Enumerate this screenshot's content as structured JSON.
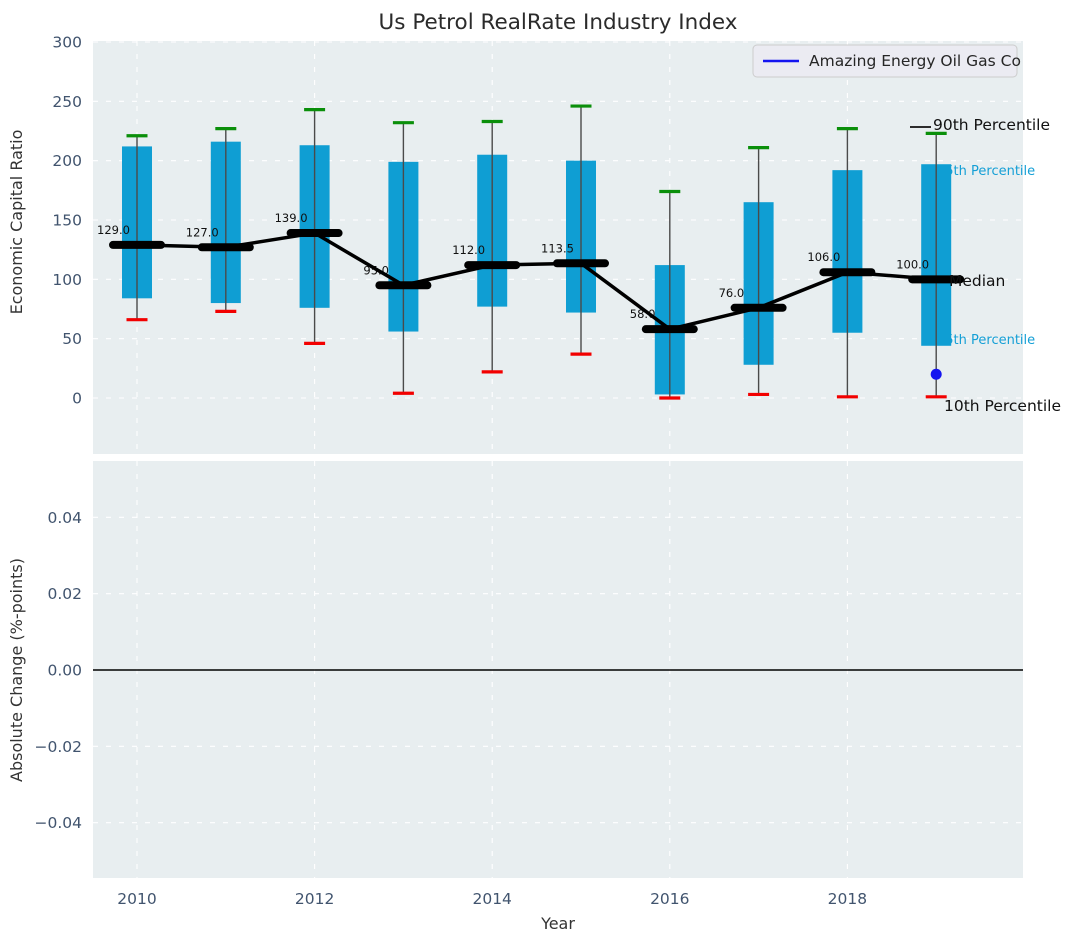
{
  "title": "Us Petrol RealRate Industry Index",
  "colors": {
    "figure_bg": "#ffffff",
    "panel_bg": "#e8eef0",
    "grid": "#ffffff",
    "box_fill": "#0f9ed3",
    "whisker": "#4a4a4a",
    "cap_90th": "#0a8f0a",
    "cap_10th": "#f20000",
    "median": "#000000",
    "company": "#1414f0",
    "tick_label": "#41546e",
    "axis_label": "#333333",
    "title": "#2b2b2b",
    "annotation_dark": "#111111",
    "annotation_teal": "#149fd6",
    "legend_bg": "#ebebf2",
    "legend_border": "#cccccc",
    "legend_text": "#262626",
    "zero_line": "#000000"
  },
  "annotations": {
    "p90": "90th Percentile",
    "p75": "75th Percentile",
    "median": "Median",
    "p25": "25th Percentile",
    "p10": "10th Percentile"
  },
  "chart_data": [
    {
      "type": "boxplot",
      "title": "Us Petrol RealRate Industry Index",
      "ylabel": "Economic Capital Ratio",
      "ylim": [
        -47,
        301
      ],
      "grid": true,
      "legend": {
        "label": "Amazing Energy Oil Gas Co",
        "position": "upper right"
      },
      "x": [
        2010,
        2011,
        2012,
        2013,
        2014,
        2015,
        2016,
        2017,
        2018,
        2019
      ],
      "series": [
        {
          "name": "90th Percentile",
          "values": [
            221,
            227,
            243,
            232,
            233,
            246,
            174,
            211,
            227,
            223
          ]
        },
        {
          "name": "75th Percentile",
          "values": [
            212,
            216,
            213,
            199,
            205,
            200,
            112,
            165,
            192,
            197
          ]
        },
        {
          "name": "Median",
          "values": [
            129.0,
            127.0,
            139.0,
            95.0,
            112.0,
            113.5,
            58.0,
            76.0,
            106.0,
            100.0
          ]
        },
        {
          "name": "25th Percentile",
          "values": [
            84,
            80,
            76,
            56,
            77,
            72,
            3,
            28,
            55,
            44
          ]
        },
        {
          "name": "10th Percentile",
          "values": [
            66,
            73,
            46,
            4,
            22,
            37,
            0,
            3,
            1,
            1
          ]
        }
      ],
      "median_labels": [
        "129.0",
        "127.0",
        "139.0",
        "95.0",
        "112.0",
        "113.5",
        "58.0",
        "76.0",
        "106.0",
        "100.0"
      ],
      "company_point": {
        "name": "Amazing Energy Oil Gas Co",
        "x": 2019,
        "y": 20
      },
      "yticks": [
        {
          "value": 0,
          "label": "0"
        },
        {
          "value": 50,
          "label": "50"
        },
        {
          "value": 100,
          "label": "100"
        },
        {
          "value": 150,
          "label": "150"
        },
        {
          "value": 200,
          "label": "200"
        },
        {
          "value": 250,
          "label": "250"
        },
        {
          "value": 300,
          "label": "300"
        }
      ]
    },
    {
      "type": "line",
      "ylabel": "Absolute Change (%-points)",
      "xlabel": "Year",
      "ylim": [
        -0.055,
        0.055
      ],
      "grid": true,
      "zero_line": true,
      "series": [],
      "yticks": [
        {
          "value": -0.04,
          "label": "−0.04"
        },
        {
          "value": -0.02,
          "label": "−0.02"
        },
        {
          "value": 0,
          "label": "0.00"
        },
        {
          "value": 0.02,
          "label": "0.02"
        },
        {
          "value": 0.04,
          "label": "0.04"
        }
      ],
      "xticks": [
        {
          "value": 2010,
          "label": "2010"
        },
        {
          "value": 2012,
          "label": "2012"
        },
        {
          "value": 2014,
          "label": "2014"
        },
        {
          "value": 2016,
          "label": "2016"
        },
        {
          "value": 2018,
          "label": "2018"
        }
      ]
    }
  ]
}
